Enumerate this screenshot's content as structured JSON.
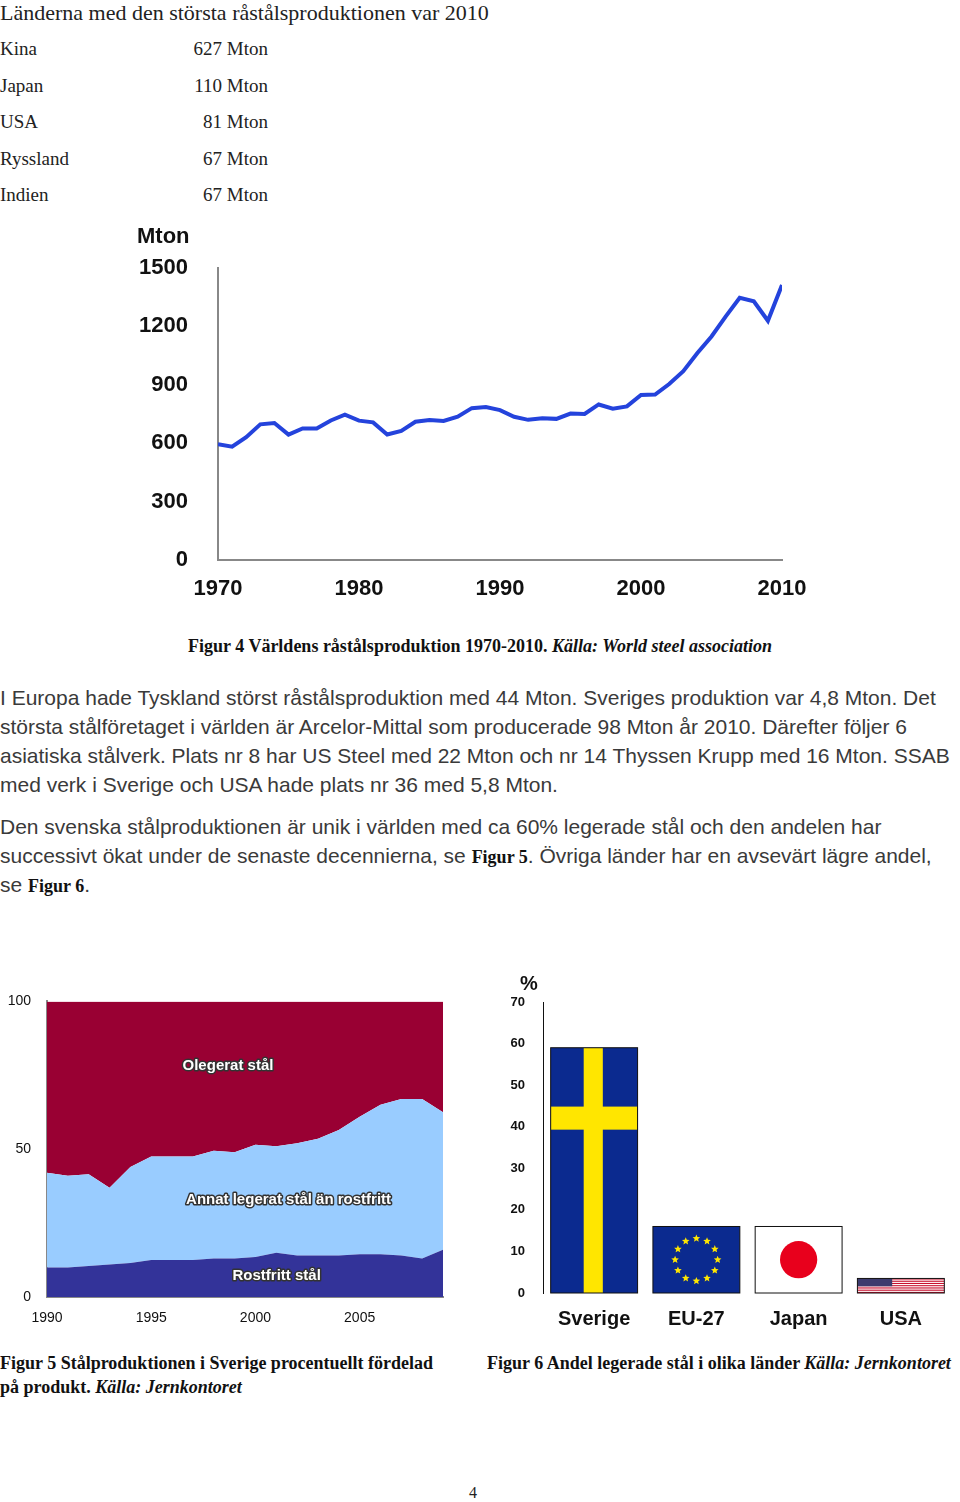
{
  "heading": "Länderna med den största råstålsproduktionen var 2010",
  "table": {
    "rows": [
      [
        "Kina",
        "627 Mton"
      ],
      [
        "Japan",
        "110 Mton"
      ],
      [
        "USA",
        "81 Mton"
      ],
      [
        "Ryssland",
        "67 Mton"
      ],
      [
        "Indien",
        "67 Mton"
      ]
    ]
  },
  "chart_data": [
    {
      "type": "line",
      "y_label": "Mton",
      "x": [
        1970,
        1971,
        1972,
        1973,
        1974,
        1975,
        1976,
        1977,
        1978,
        1979,
        1980,
        1981,
        1982,
        1983,
        1984,
        1985,
        1986,
        1987,
        1988,
        1989,
        1990,
        1991,
        1992,
        1993,
        1994,
        1995,
        1996,
        1997,
        1998,
        1999,
        2000,
        2001,
        2002,
        2003,
        2004,
        2005,
        2006,
        2007,
        2008,
        2009,
        2010
      ],
      "values": [
        595,
        582,
        631,
        697,
        704,
        644,
        676,
        675,
        717,
        747,
        716,
        707,
        645,
        663,
        710,
        719,
        714,
        736,
        780,
        786,
        770,
        736,
        720,
        728,
        725,
        752,
        750,
        799,
        777,
        789,
        848,
        850,
        904,
        970,
        1063,
        1148,
        1250,
        1347,
        1329,
        1229,
        1413
      ],
      "color": "#2443dc",
      "xlim": [
        1970,
        2010
      ],
      "xticks": [
        1970,
        1980,
        1990,
        2000,
        2010
      ],
      "ylim": [
        0,
        1500
      ],
      "yticks": [
        0,
        300,
        600,
        900,
        1200,
        1500
      ],
      "grid": false
    },
    {
      "type": "area",
      "stacked": true,
      "x": [
        1990,
        1991,
        1992,
        1993,
        1994,
        1995,
        1996,
        1997,
        1998,
        1999,
        2000,
        2001,
        2002,
        2003,
        2004,
        2005,
        2006,
        2007,
        2008,
        2009
      ],
      "series": [
        {
          "name": "Rostfritt stål",
          "color": "#333399",
          "values": [
            10,
            10,
            10.5,
            11,
            11.5,
            12.5,
            12.5,
            12.5,
            13,
            13,
            13.5,
            15,
            14,
            14,
            14,
            14.5,
            14.5,
            14,
            13,
            16
          ]
        },
        {
          "name": "Annat legerat stål än rostfritt",
          "color": "#99ccff",
          "values": [
            32,
            31,
            31,
            26,
            32.5,
            35,
            35,
            35,
            36.5,
            36,
            38,
            36,
            38,
            39.5,
            42.5,
            46.5,
            50.5,
            53,
            54,
            46.5
          ]
        },
        {
          "name": "Olegerat stål",
          "color": "#990033",
          "values": [
            58,
            59,
            58.5,
            63,
            56,
            52.5,
            52.5,
            52.5,
            50.5,
            51,
            48.5,
            49,
            48,
            46.5,
            43.5,
            39,
            35,
            33,
            33,
            37.5
          ]
        }
      ],
      "xlim": [
        1990,
        2009
      ],
      "xticks": [
        1990,
        1995,
        2000,
        2005
      ],
      "ylim": [
        0,
        100
      ],
      "yticks": [
        0,
        50,
        100
      ],
      "grid": false
    },
    {
      "type": "bar",
      "y_label": "%",
      "categories": [
        "Sverige",
        "EU-27",
        "Japan",
        "USA"
      ],
      "values": [
        59,
        16,
        16,
        3.5
      ],
      "colors": [
        "#0b2a8f",
        "#0b2a8f",
        "#ffffff",
        "#ffffff"
      ],
      "ylim": [
        0,
        70
      ],
      "yticks": [
        0,
        10,
        20,
        30,
        40,
        50,
        60,
        70
      ],
      "grid": false
    }
  ],
  "captions": [
    [
      {
        "text": "Figur 4 Världens råstålsproduktion 1970-2010. ",
        "italic": false
      },
      {
        "text": "Källa: World steel association",
        "italic": true
      }
    ],
    [
      {
        "text": "Figur 5 Stålproduktionen i Sverige procentuellt fördelad på produkt. ",
        "italic": false
      },
      {
        "text": "Källa: Jernkontoret",
        "italic": true
      }
    ],
    [
      {
        "text": "Figur 6 Andel legerade stål i olika länder ",
        "italic": false
      },
      {
        "text": "Källa: Jernkontoret",
        "italic": true
      }
    ]
  ],
  "paragraphs": [
    [
      {
        "text": "I Europa hade Tyskland störst råstålsproduktion med 44 Mton. Sveriges produktion var 4,8 Mton. Det största stålföretaget i världen är Arcelor-Mittal som producerade 98 Mton år 2010. Därefter följer 6 asiatiska stålverk. Plats nr 8 har US Steel med 22 Mton och nr 14 Thyssen Krupp med 16 Mton. SSAB med verk i Sverige och USA hade plats nr 36 med 5,8 Mton.",
        "bold": false
      }
    ],
    [
      {
        "text": "Den svenska stålproduktionen är unik i världen med ca 60% legerade stål och den andelen har successivt ökat under de senaste decennierna, se ",
        "bold": false
      },
      {
        "text": "Figur 5",
        "bold": true
      },
      {
        "text": ". Övriga länder har en avsevärt lägre andel, se ",
        "bold": false
      },
      {
        "text": "Figur 6",
        "bold": true
      },
      {
        "text": ".",
        "bold": false
      }
    ]
  ],
  "page_number": "4"
}
